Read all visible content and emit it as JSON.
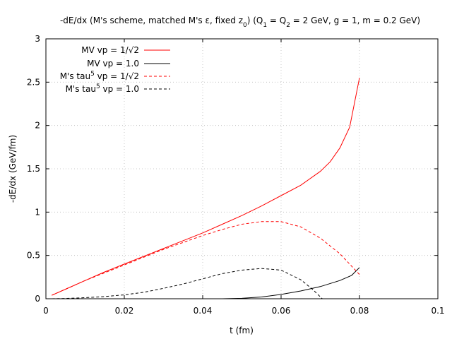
{
  "chart_data": {
    "type": "line",
    "title": {
      "t1": "-dE/dx (M's scheme, matched M's ε, fixed z",
      "t1sub": "0",
      "t2": ") (Q",
      "t2sub": "1",
      "t3": " = Q",
      "t3sub": "2",
      "t4": " = 2 GeV, g = 1, m = 0.2 GeV)"
    },
    "xlabel": "t (fm)",
    "ylabel": "-dE/dx (GeV/fm)",
    "xlim": [
      0,
      0.1
    ],
    "ylim": [
      0,
      3
    ],
    "xticks": [
      0,
      0.02,
      0.04,
      0.06,
      0.08,
      0.1
    ],
    "yticks": [
      0,
      0.5,
      1,
      1.5,
      2,
      2.5,
      3
    ],
    "xtick_labels": [
      "0",
      "0.02",
      "0.04",
      "0.06",
      "0.08",
      "0.1"
    ],
    "ytick_labels": [
      "0",
      "0.5",
      "1",
      "1.5",
      "2",
      "2.5",
      "3"
    ],
    "grid": true,
    "legend_position": "top-left",
    "series": [
      {
        "name": "MV vp = 1/√2",
        "name_parts": [
          "MV vp = 1/√2"
        ],
        "color": "#ff0000",
        "dash": "solid",
        "x": [
          0.0015,
          0.005,
          0.01,
          0.015,
          0.02,
          0.025,
          0.03,
          0.035,
          0.04,
          0.045,
          0.05,
          0.055,
          0.06,
          0.065,
          0.07,
          0.0725,
          0.075,
          0.0775,
          0.08
        ],
        "y": [
          0.04,
          0.11,
          0.21,
          0.31,
          0.4,
          0.49,
          0.58,
          0.67,
          0.76,
          0.86,
          0.96,
          1.07,
          1.19,
          1.31,
          1.47,
          1.58,
          1.74,
          1.98,
          2.55
        ]
      },
      {
        "name": "MV vp = 1.0",
        "name_parts": [
          "MV vp = 1.0"
        ],
        "color": "#000000",
        "dash": "solid",
        "x": [
          0.0015,
          0.01,
          0.02,
          0.03,
          0.04,
          0.045,
          0.05,
          0.055,
          0.06,
          0.065,
          0.07,
          0.075,
          0.078,
          0.08
        ],
        "y": [
          0,
          0,
          0,
          0,
          0,
          0,
          0.005,
          0.02,
          0.05,
          0.09,
          0.14,
          0.21,
          0.27,
          0.36
        ]
      },
      {
        "name": "M's tau5 vp = 1/√2",
        "name_parts": [
          "M's tau",
          "5",
          " vp = 1/√2"
        ],
        "color": "#ff0000",
        "dash": "dashed",
        "x": [
          0.0015,
          0.005,
          0.01,
          0.015,
          0.02,
          0.025,
          0.03,
          0.035,
          0.04,
          0.045,
          0.05,
          0.055,
          0.06,
          0.065,
          0.07,
          0.075,
          0.08
        ],
        "y": [
          0.04,
          0.11,
          0.21,
          0.3,
          0.39,
          0.48,
          0.57,
          0.65,
          0.73,
          0.8,
          0.86,
          0.89,
          0.89,
          0.83,
          0.7,
          0.52,
          0.28
        ]
      },
      {
        "name": "M's tau5 vp = 1.0",
        "name_parts": [
          "M's tau",
          "5",
          " vp = 1.0"
        ],
        "color": "#000000",
        "dash": "dashed",
        "x": [
          0.0015,
          0.005,
          0.01,
          0.015,
          0.02,
          0.025,
          0.03,
          0.035,
          0.04,
          0.045,
          0.05,
          0.055,
          0.06,
          0.065,
          0.068,
          0.0705
        ],
        "y": [
          0,
          0.003,
          0.012,
          0.025,
          0.045,
          0.075,
          0.12,
          0.17,
          0.23,
          0.29,
          0.33,
          0.35,
          0.33,
          0.22,
          0.11,
          0
        ]
      }
    ]
  }
}
